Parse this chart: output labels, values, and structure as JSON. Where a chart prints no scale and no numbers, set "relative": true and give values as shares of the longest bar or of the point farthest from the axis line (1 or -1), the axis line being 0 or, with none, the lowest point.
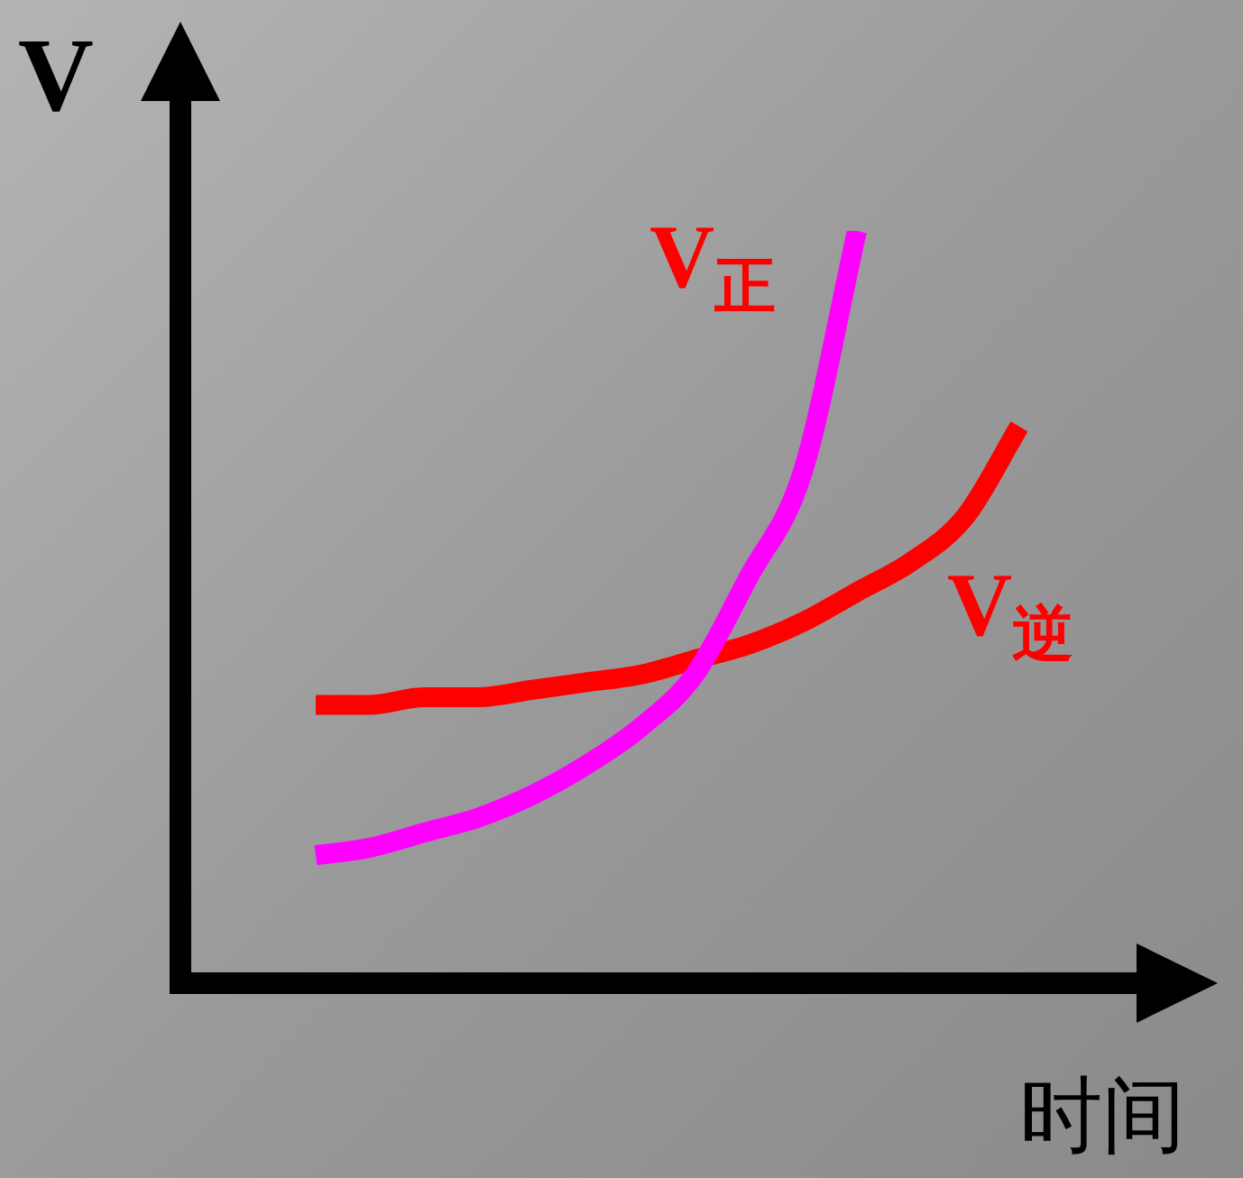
{
  "chart_data": {
    "type": "line",
    "relative": true,
    "xlabel": "时间",
    "ylabel": "V",
    "categories": [
      null,
      null,
      null,
      null,
      null,
      null,
      null,
      null,
      null,
      null,
      null,
      null,
      null,
      null
    ],
    "marker": "none",
    "line_style": "solid",
    "legend": false,
    "series": [
      {
        "name": "V$_{正}$",
        "color": "#ff00ff",
        "values": [
          0.17,
          0.18,
          0.2,
          0.22,
          0.25,
          0.29,
          0.34,
          0.41,
          0.54,
          0.68,
          1.0,
          null,
          null,
          null
        ]
      },
      {
        "name": "V$_{逆}$",
        "color": "#ff0000",
        "values": [
          0.37,
          0.37,
          0.38,
          0.38,
          0.39,
          0.4,
          0.41,
          0.43,
          0.45,
          0.48,
          0.52,
          0.56,
          0.62,
          0.74
        ]
      }
    ]
  }
}
